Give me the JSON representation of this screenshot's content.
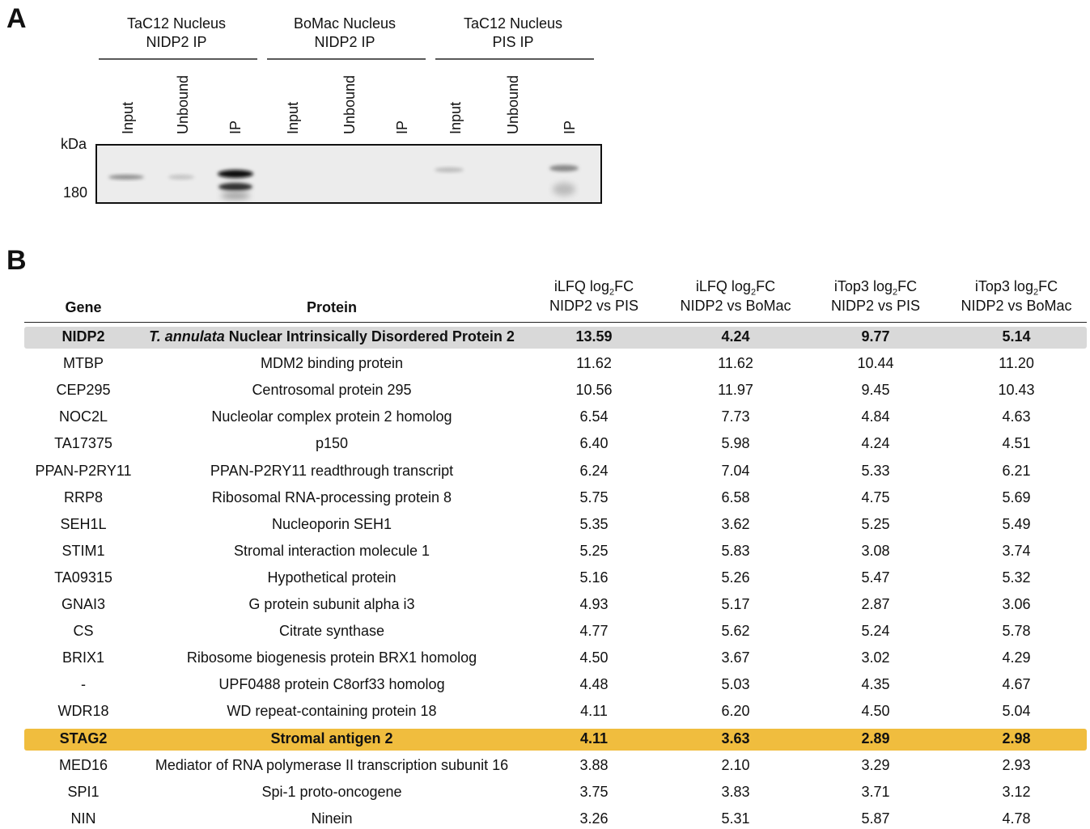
{
  "panel_a": {
    "label": "A",
    "kda": "kDa",
    "marker": "180",
    "groups": [
      {
        "line1": "TaC12 Nucleus",
        "line2": "NIDP2 IP",
        "lanes": [
          "Input",
          "Unbound",
          "IP"
        ]
      },
      {
        "line1": "BoMac Nucleus",
        "line2": "NIDP2 IP",
        "lanes": [
          "Input",
          "Unbound",
          "IP"
        ]
      },
      {
        "line1": "TaC12 Nucleus",
        "line2": "PIS IP",
        "lanes": [
          "Input",
          "Unbound",
          "IP"
        ]
      }
    ]
  },
  "panel_b": {
    "label": "B",
    "header": {
      "gene": "Gene",
      "protein": "Protein",
      "metrics": [
        {
          "pre": "iLFQ log",
          "sub": "2",
          "post": "FC",
          "line2": "NIDP2 vs PIS"
        },
        {
          "pre": "iLFQ log",
          "sub": "2",
          "post": "FC",
          "line2": "NIDP2 vs BoMac"
        },
        {
          "pre": "iTop3 log",
          "sub": "2",
          "post": "FC",
          "line2": "NIDP2 vs PIS"
        },
        {
          "pre": "iTop3 log",
          "sub": "2",
          "post": "FC",
          "line2": "NIDP2 vs BoMac"
        }
      ]
    },
    "rows": [
      {
        "gene": "NIDP2",
        "protein_italic": "T. annulata",
        "protein": "Nuclear Intrinsically Disordered Protein 2",
        "values": [
          "13.59",
          "4.24",
          "9.77",
          "5.14"
        ],
        "highlight": "#d9d9d9",
        "bold": true
      },
      {
        "gene": "MTBP",
        "protein": "MDM2 binding protein",
        "values": [
          "11.62",
          "11.62",
          "10.44",
          "11.20"
        ]
      },
      {
        "gene": "CEP295",
        "protein": "Centrosomal protein 295",
        "values": [
          "10.56",
          "11.97",
          "9.45",
          "10.43"
        ]
      },
      {
        "gene": "NOC2L",
        "protein": "Nucleolar complex protein 2 homolog",
        "values": [
          "6.54",
          "7.73",
          "4.84",
          "4.63"
        ]
      },
      {
        "gene": "TA17375",
        "protein": "p150",
        "values": [
          "6.40",
          "5.98",
          "4.24",
          "4.51"
        ]
      },
      {
        "gene": "PPAN-P2RY11",
        "protein": "PPAN-P2RY11 readthrough transcript",
        "values": [
          "6.24",
          "7.04",
          "5.33",
          "6.21"
        ]
      },
      {
        "gene": "RRP8",
        "protein": "Ribosomal RNA-processing protein 8",
        "values": [
          "5.75",
          "6.58",
          "4.75",
          "5.69"
        ]
      },
      {
        "gene": "SEH1L",
        "protein": "Nucleoporin SEH1",
        "values": [
          "5.35",
          "3.62",
          "5.25",
          "5.49"
        ]
      },
      {
        "gene": "STIM1",
        "protein": "Stromal interaction molecule 1",
        "values": [
          "5.25",
          "5.83",
          "3.08",
          "3.74"
        ]
      },
      {
        "gene": "TA09315",
        "protein": "Hypothetical protein",
        "values": [
          "5.16",
          "5.26",
          "5.47",
          "5.32"
        ]
      },
      {
        "gene": "GNAI3",
        "protein": "G protein subunit alpha i3",
        "values": [
          "4.93",
          "5.17",
          "2.87",
          "3.06"
        ]
      },
      {
        "gene": "CS",
        "protein": "Citrate synthase",
        "values": [
          "4.77",
          "5.62",
          "5.24",
          "5.78"
        ]
      },
      {
        "gene": "BRIX1",
        "protein": "Ribosome biogenesis protein BRX1 homolog",
        "values": [
          "4.50",
          "3.67",
          "3.02",
          "4.29"
        ]
      },
      {
        "gene": "-",
        "protein": "UPF0488 protein C8orf33 homolog",
        "values": [
          "4.48",
          "5.03",
          "4.35",
          "4.67"
        ]
      },
      {
        "gene": "WDR18",
        "protein": "WD repeat-containing protein 18",
        "values": [
          "4.11",
          "6.20",
          "4.50",
          "5.04"
        ]
      },
      {
        "gene": "STAG2",
        "protein": "Stromal antigen 2",
        "values": [
          "4.11",
          "3.63",
          "2.89",
          "2.98"
        ],
        "highlight": "#f0bd3e",
        "bold": true
      },
      {
        "gene": "MED16",
        "protein": "Mediator of RNA polymerase II transcription subunit 16",
        "values": [
          "3.88",
          "2.10",
          "3.29",
          "2.93"
        ]
      },
      {
        "gene": "SPI1",
        "protein": "Spi-1 proto-oncogene",
        "values": [
          "3.75",
          "3.83",
          "3.71",
          "3.12"
        ]
      },
      {
        "gene": "NIN",
        "protein": "Ninein",
        "values": [
          "3.26",
          "5.31",
          "5.87",
          "4.78"
        ]
      }
    ]
  }
}
